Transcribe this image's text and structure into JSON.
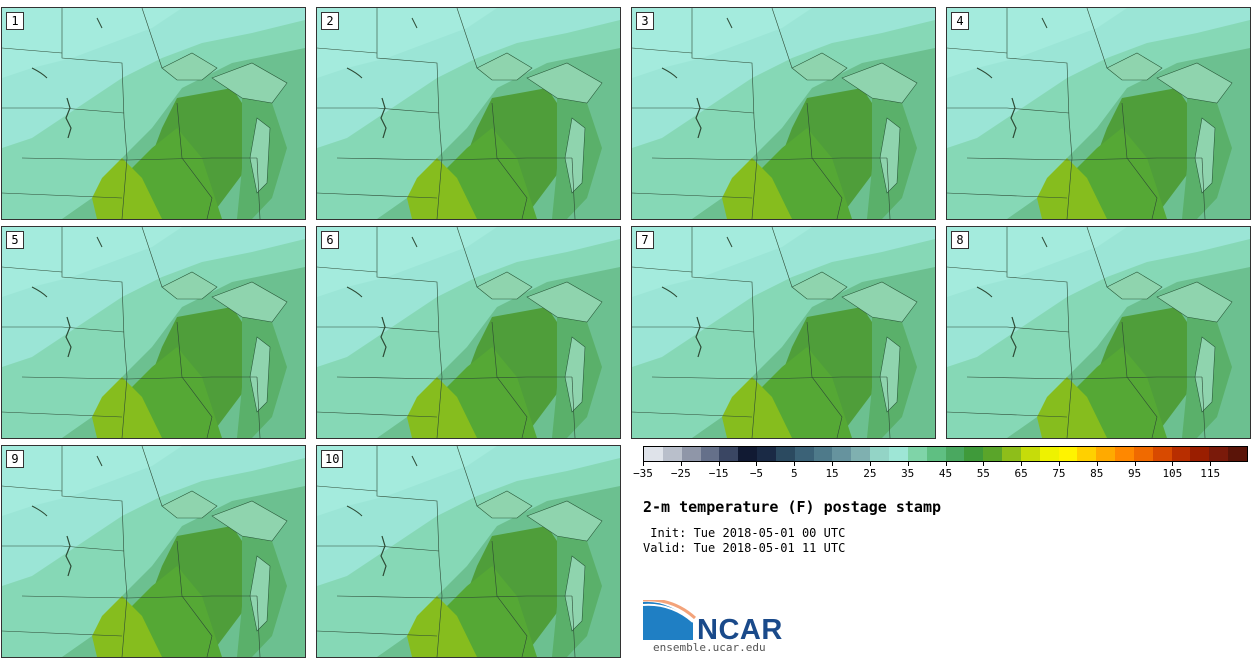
{
  "panels": [
    {
      "label": "1"
    },
    {
      "label": "2"
    },
    {
      "label": "3"
    },
    {
      "label": "4"
    },
    {
      "label": "5"
    },
    {
      "label": "6"
    },
    {
      "label": "7"
    },
    {
      "label": "8"
    },
    {
      "label": "9"
    },
    {
      "label": "10"
    }
  ],
  "colorbar": {
    "colors": [
      "#dfe3ea",
      "#b9bfcb",
      "#8f96a8",
      "#65708a",
      "#3a4663",
      "#111a33",
      "#1a2a45",
      "#2b4a60",
      "#3b6277",
      "#4e7a8a",
      "#66939e",
      "#7fb0b0",
      "#93d4c6",
      "#9ee6d6",
      "#7fd4a8",
      "#5fbf82",
      "#4aa860",
      "#3f9a3a",
      "#5aa52a",
      "#8ebe1a",
      "#c6dc0a",
      "#eef200",
      "#fff300",
      "#ffd000",
      "#ffaa00",
      "#ff8800",
      "#f06a00",
      "#d84a00",
      "#b82e00",
      "#9a1e00",
      "#7a1a0a",
      "#5a1408"
    ],
    "tick_labels": [
      "−35",
      "−25",
      "−15",
      "−5",
      "5",
      "15",
      "25",
      "35",
      "45",
      "55",
      "65",
      "75",
      "85",
      "95",
      "105",
      "115"
    ]
  },
  "title": "2-m temperature (F) postage stamp",
  "init": " Init: Tue 2018-05-01 00 UTC",
  "valid": "Valid: Tue 2018-05-01 11 UTC",
  "logo": {
    "name": "NCAR",
    "site": "ensemble.ucar.edu"
  }
}
